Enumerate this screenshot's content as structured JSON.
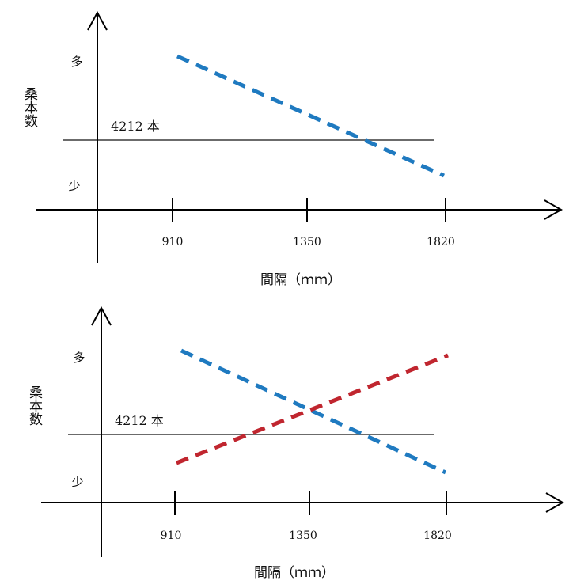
{
  "colors": {
    "axis": "#000000",
    "reference_line": "#6b6b6b",
    "blue_dashed": "#1f7ac0",
    "red_dashed": "#c0262f"
  },
  "chart_data": [
    {
      "type": "line",
      "xlabel": "間隔（ｍｍ）",
      "ylabel": "桑本数",
      "x_ticks": [
        "910",
        "1350",
        "1820"
      ],
      "y_high_label": "多",
      "y_low_label": "少",
      "y_scale": "qualitative",
      "reference": {
        "value": 4212,
        "label": "4212 本"
      },
      "series": [
        {
          "color": "#1f7ac0",
          "style": "dashed",
          "x": [
            910,
            1820
          ],
          "y": [
            5700,
            3400
          ]
        }
      ]
    },
    {
      "type": "line",
      "xlabel": "間隔（ｍｍ）",
      "ylabel": "桑本数",
      "x_ticks": [
        "910",
        "1350",
        "1820"
      ],
      "y_high_label": "多",
      "y_low_label": "少",
      "y_scale": "qualitative",
      "reference": {
        "value": 4212,
        "label": "4212 本"
      },
      "series": [
        {
          "color": "#1f7ac0",
          "style": "dashed",
          "x": [
            910,
            1820
          ],
          "y": [
            5700,
            3400
          ]
        },
        {
          "color": "#c0262f",
          "style": "dashed",
          "x": [
            910,
            1820
          ],
          "y": [
            3700,
            5600
          ]
        }
      ]
    }
  ]
}
